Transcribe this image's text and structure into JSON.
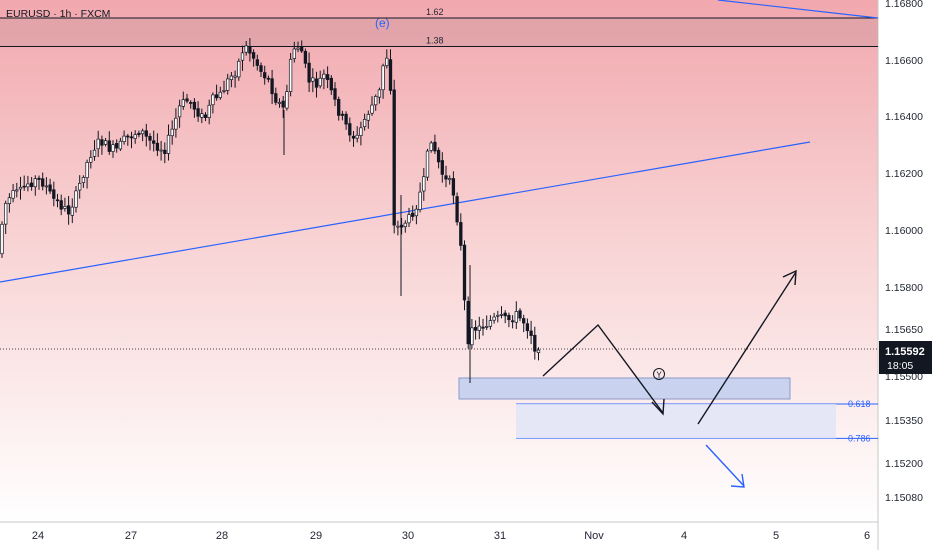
{
  "chart_data": {
    "type": "candlestick",
    "title": "EURUSD · 1h · FXCM",
    "symbol": "EURUSD",
    "interval": "1h",
    "broker": "FXCM",
    "y_tick_labels": [
      "1.16800",
      "1.16600",
      "1.16400",
      "1.16200",
      "1.16000",
      "1.15800",
      "1.15650",
      "1.15500",
      "1.15350",
      "1.15200",
      "1.15080"
    ],
    "x_tick_labels": [
      "24",
      "27",
      "28",
      "29",
      "30",
      "31",
      "Nov",
      "4",
      "5",
      "6"
    ],
    "current_price": "1.15592",
    "countdown": "18:05",
    "fib_levels": [
      {
        "label": "1.62",
        "price": 1.16755
      },
      {
        "label": "1.38",
        "price": 1.16655
      },
      {
        "label": "0.618",
        "price": 1.15398
      },
      {
        "label": "0.786",
        "price": 1.15277
      }
    ],
    "wave_labels": [
      "(e)",
      "Y"
    ],
    "colors": {
      "bull": "#ffffff",
      "bear": "#131722",
      "trendline": "#2962ff",
      "zone_fill": "#c9d3f0",
      "bg_top": "#f1a8ae",
      "bg_bottom": "#ffffff"
    }
  }
}
